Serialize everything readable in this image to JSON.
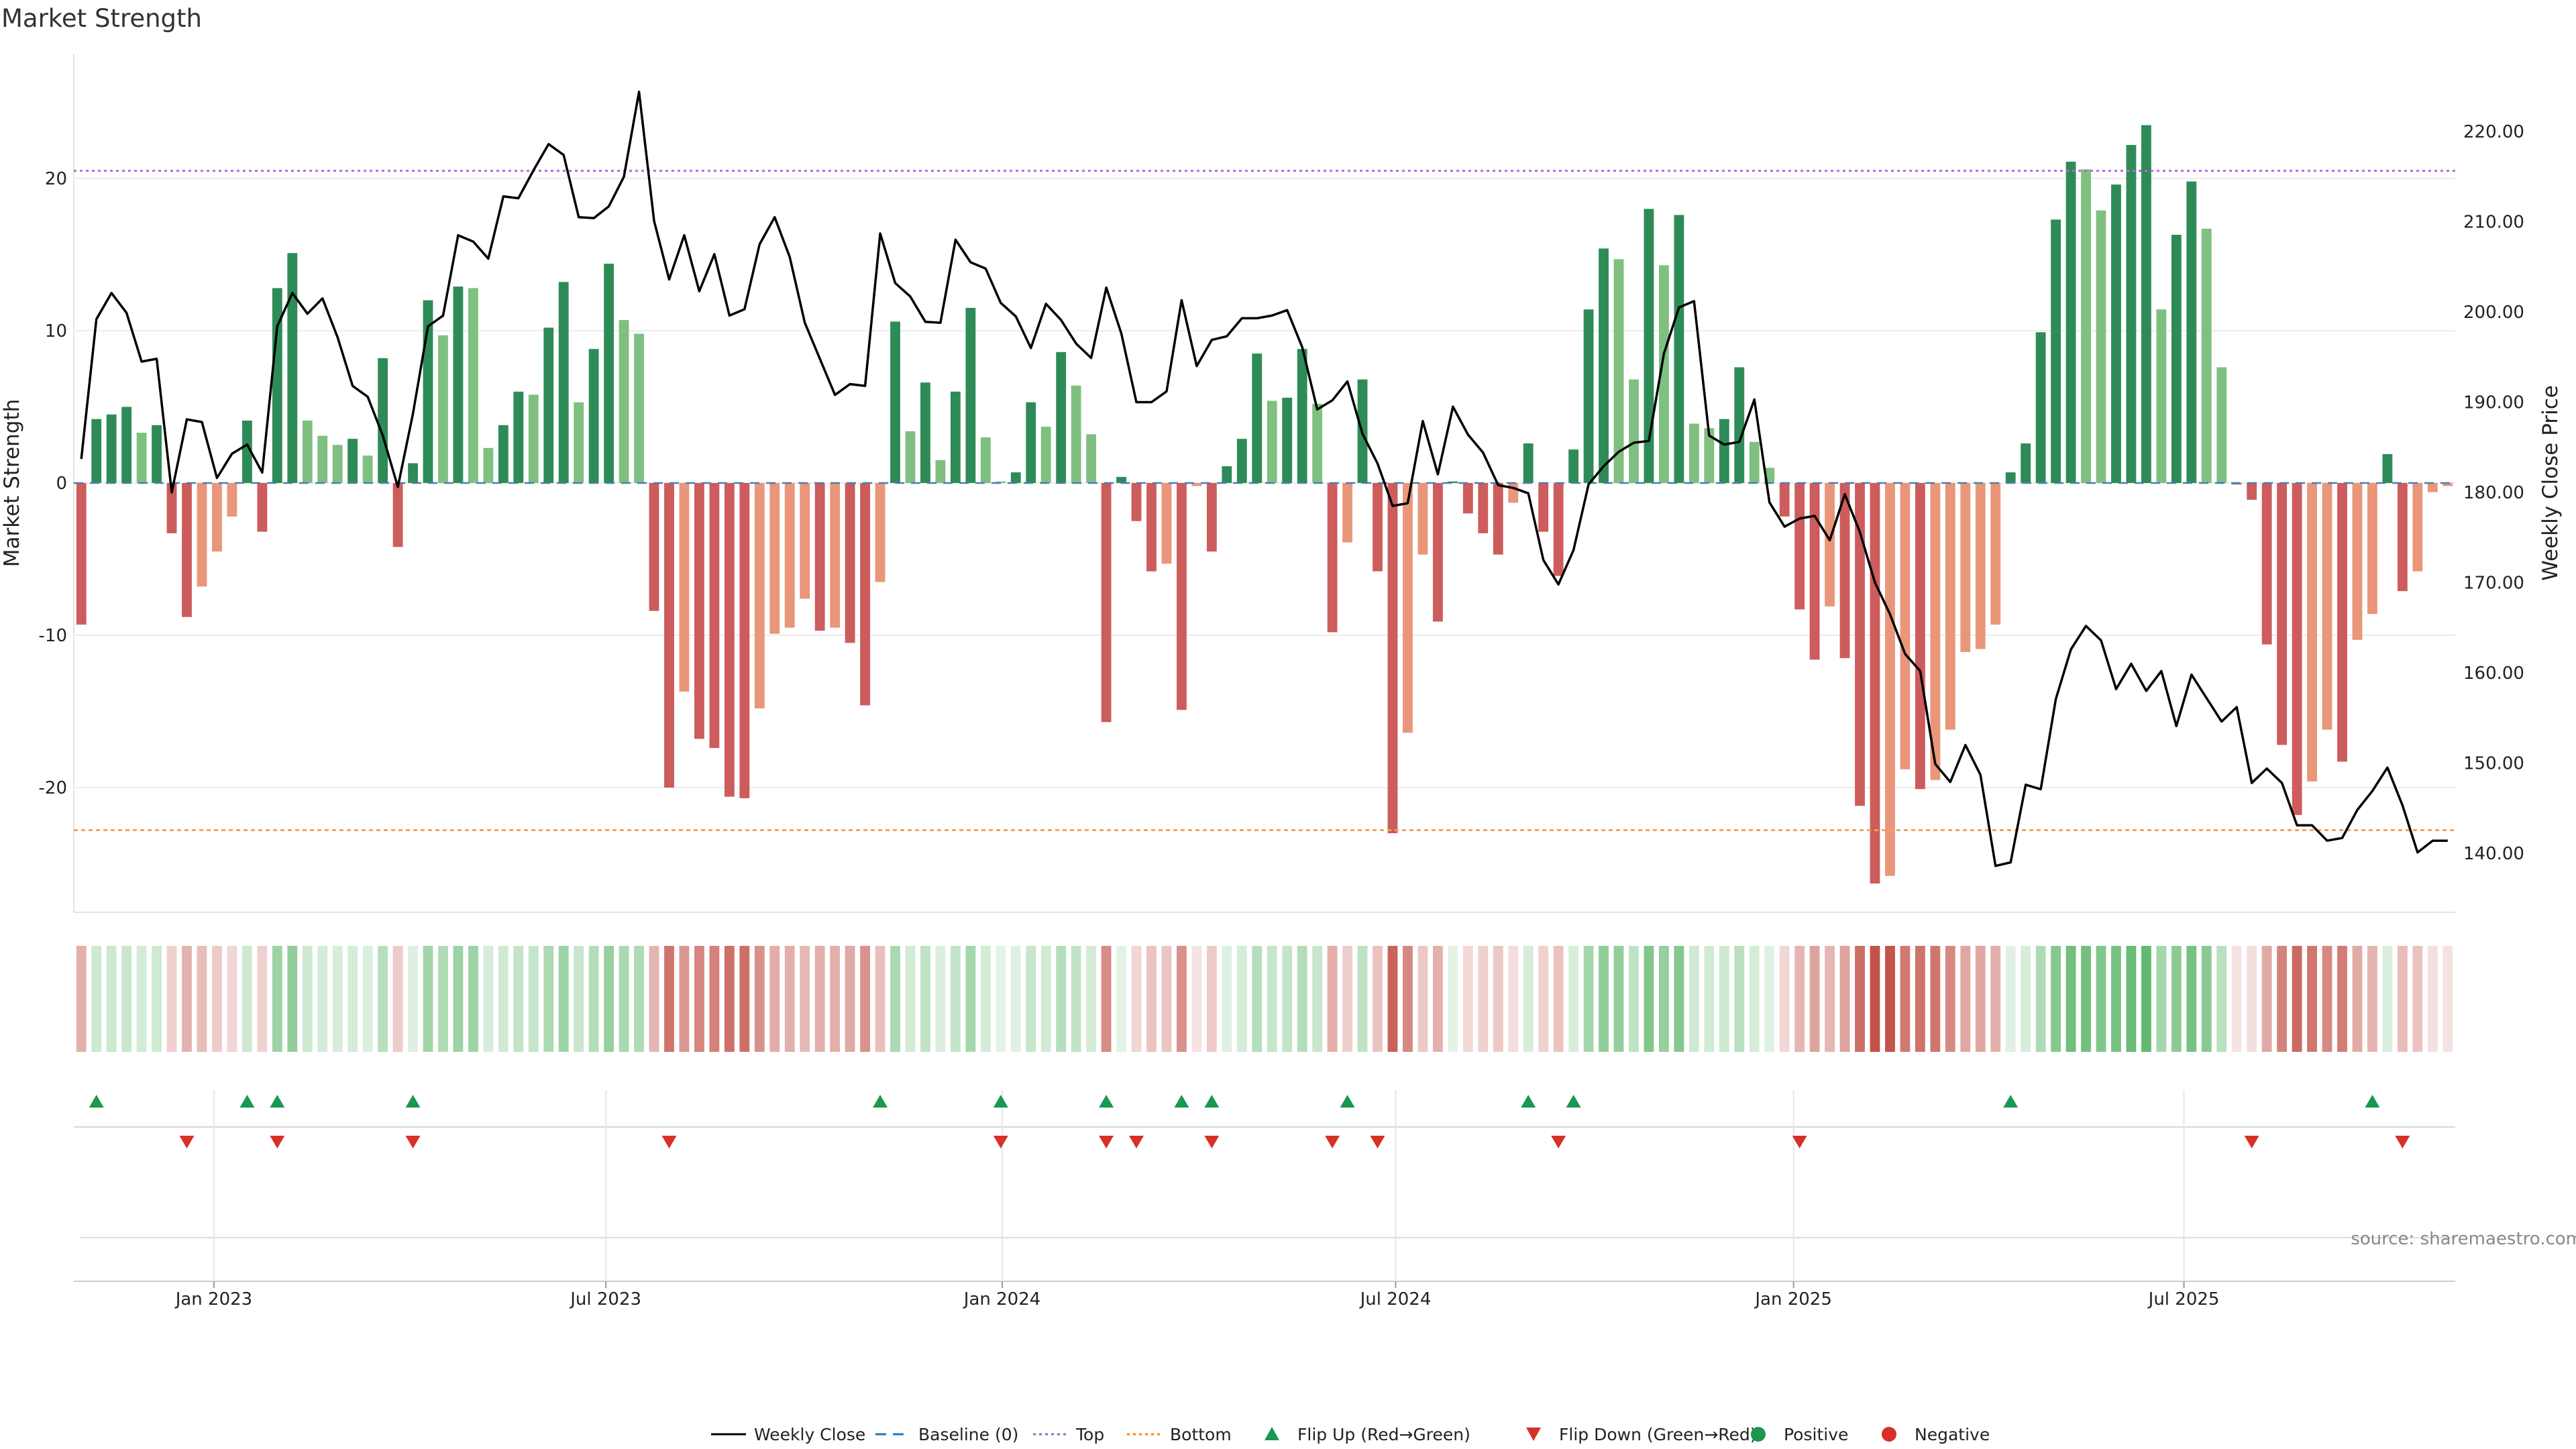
{
  "chart_data": {
    "type": "bar",
    "title": "Market Strength",
    "ylabel_left": "Market Strength",
    "ylabel_right": "Weekly Close Price",
    "source": "source: sharemaestro.com",
    "ylim_left": [
      -28,
      28
    ],
    "yticks_left": [
      -20,
      -10,
      0,
      10,
      20
    ],
    "ylim_right": [
      132,
      225
    ],
    "yticks_right": [
      "140.00",
      "150.00",
      "160.00",
      "170.00",
      "180.00",
      "190.00",
      "200.00",
      "210.00",
      "220.00"
    ],
    "x_start": "2022-10-31",
    "week_count": 158,
    "x_ticks": [
      {
        "label": "Jan 2023",
        "week": 9.3
      },
      {
        "label": "Jul 2023",
        "week": 35.3
      },
      {
        "label": "Jan 2024",
        "week": 61.6
      },
      {
        "label": "Jul 2024",
        "week": 87.7
      },
      {
        "label": "Jan 2025",
        "week": 114.1
      },
      {
        "label": "Jul 2025",
        "week": 140.0
      }
    ],
    "top_line": 20.5,
    "bottom_line": -22.8,
    "strength": [
      -9.3,
      4.2,
      4.5,
      5.0,
      3.3,
      3.8,
      -3.3,
      -8.8,
      -6.8,
      -4.5,
      -2.2,
      4.1,
      -3.2,
      12.8,
      15.1,
      4.1,
      3.1,
      2.5,
      2.9,
      1.8,
      8.2,
      -4.2,
      1.3,
      12.0,
      9.7,
      12.9,
      12.8,
      2.3,
      3.8,
      6.0,
      5.8,
      10.2,
      13.2,
      5.3,
      8.8,
      14.4,
      10.7,
      9.8,
      -8.4,
      -20.0,
      -13.7,
      -16.8,
      -17.4,
      -20.6,
      -20.7,
      -14.8,
      -9.9,
      -9.5,
      -7.6,
      -9.7,
      -9.5,
      -10.5,
      -14.6,
      -6.5,
      10.6,
      3.4,
      6.6,
      1.5,
      6.0,
      11.5,
      3.0,
      0.1,
      0.7,
      5.3,
      3.7,
      8.6,
      6.4,
      3.2,
      -15.7,
      0.4,
      -2.5,
      -5.8,
      -5.3,
      -14.9,
      -0.2,
      -4.5,
      1.1,
      2.9,
      8.5,
      5.4,
      5.6,
      8.8,
      5.2,
      -9.8,
      -3.9,
      6.8,
      -5.8,
      -23.0,
      -16.4,
      -4.7,
      -9.1,
      0.1,
      -2.0,
      -3.3,
      -4.7,
      -1.3,
      2.6,
      -3.2,
      -6.1,
      2.2,
      11.4,
      15.4,
      14.7,
      6.8,
      18.0,
      14.3,
      17.6,
      3.9,
      3.6,
      4.2,
      7.6,
      2.7,
      1.0,
      -2.2,
      -8.3,
      -11.6,
      -8.1,
      -11.5,
      -21.2,
      -26.3,
      -25.8,
      -18.8,
      -20.1,
      -19.5,
      -16.2,
      -11.1,
      -10.9,
      -9.3,
      0.7,
      2.6,
      9.9,
      17.3,
      21.1,
      20.6,
      17.9,
      19.6,
      22.2,
      23.5,
      11.4,
      16.3,
      19.8,
      16.7,
      7.6,
      -0.1,
      -1.1,
      -10.6,
      -17.2,
      -21.8,
      -19.6,
      -16.2,
      -18.3,
      -10.3,
      -8.6,
      1.9,
      -7.1,
      -5.8,
      -0.6,
      -0.2
    ],
    "close": [
      183.7,
      199.2,
      202.1,
      199.9,
      194.5,
      194.8,
      180.0,
      188.1,
      187.8,
      181.6,
      184.3,
      185.3,
      182.2,
      198.4,
      202.1,
      199.8,
      201.5,
      197.2,
      191.8,
      190.6,
      186.3,
      180.6,
      188.7,
      198.4,
      199.6,
      208.5,
      207.8,
      205.9,
      212.8,
      212.6,
      215.7,
      218.6,
      217.4,
      210.5,
      210.4,
      211.7,
      215.0,
      224.4,
      210.1,
      203.6,
      208.5,
      202.3,
      206.4,
      199.6,
      200.3,
      207.5,
      210.5,
      206.1,
      198.8,
      194.8,
      190.8,
      192.0,
      191.8,
      208.7,
      203.2,
      201.7,
      198.9,
      198.8,
      208.0,
      205.5,
      204.8,
      201.0,
      199.5,
      196.0,
      200.9,
      199.1,
      196.5,
      194.9,
      202.7,
      197.6,
      190.0,
      190.0,
      191.2,
      201.3,
      194.0,
      196.9,
      197.3,
      199.3,
      199.3,
      199.6,
      200.2,
      196.1,
      189.2,
      190.2,
      192.3,
      186.5,
      183.2,
      178.5,
      178.8,
      187.9,
      182.0,
      189.5,
      186.4,
      184.4,
      180.8,
      180.5,
      179.9,
      172.5,
      169.8,
      173.6,
      180.9,
      182.9,
      184.5,
      185.5,
      185.7,
      195.4,
      200.5,
      201.2,
      186.3,
      185.3,
      185.6,
      190.3,
      178.9,
      176.2,
      177.1,
      177.4,
      174.7,
      179.8,
      175.6,
      170.0,
      166.5,
      162.1,
      160.2,
      149.9,
      147.9,
      152.0,
      148.7,
      138.6,
      139.0,
      147.6,
      147.1,
      157.1,
      162.6,
      165.2,
      163.6,
      158.2,
      161.0,
      158.0,
      160.2,
      154.1,
      159.8,
      157.2,
      154.6,
      156.2,
      147.8,
      149.4,
      147.8,
      143.1,
      143.1,
      141.4,
      141.7,
      144.8,
      146.9,
      149.5,
      145.3,
      140.1,
      141.4,
      141.4
    ]
  },
  "flip_up": [
    1,
    11,
    13,
    22,
    53,
    61,
    68,
    73,
    75,
    84,
    96,
    99,
    128,
    152
  ],
  "flip_down": [
    7,
    13,
    22,
    39,
    61,
    68,
    70,
    75,
    83,
    86,
    98,
    114,
    144,
    154
  ],
  "legend": [
    {
      "label": "Weekly Close",
      "icon": "line-solid",
      "color": "#000000"
    },
    {
      "label": "Baseline (0)",
      "icon": "line-dashed",
      "color": "#1f77b4"
    },
    {
      "label": "Top",
      "icon": "line-dotted",
      "color": "#9467bd"
    },
    {
      "label": "Bottom",
      "icon": "line-dotted",
      "color": "#ff7f0e"
    },
    {
      "label": "Flip Up (Red→Green)",
      "icon": "triangle-up",
      "color": "#1a9850"
    },
    {
      "label": "Flip Down (Green→Red)",
      "icon": "triangle-down",
      "color": "#d73027"
    },
    {
      "label": "Positive",
      "icon": "circle",
      "color": "#1a9850"
    },
    {
      "label": "Negative",
      "icon": "circle",
      "color": "#d73027"
    }
  ],
  "colors": {
    "pos_strong": "#2e8b57",
    "pos_light": "#7fc080",
    "neg_strong": "#cd5c5c",
    "neg_light": "#e9967a",
    "top_line": "#b86ad6",
    "bottom_line": "#f4a460",
    "close_line": "#000000",
    "flip_up": "#1a9850",
    "flip_down": "#d73027"
  }
}
